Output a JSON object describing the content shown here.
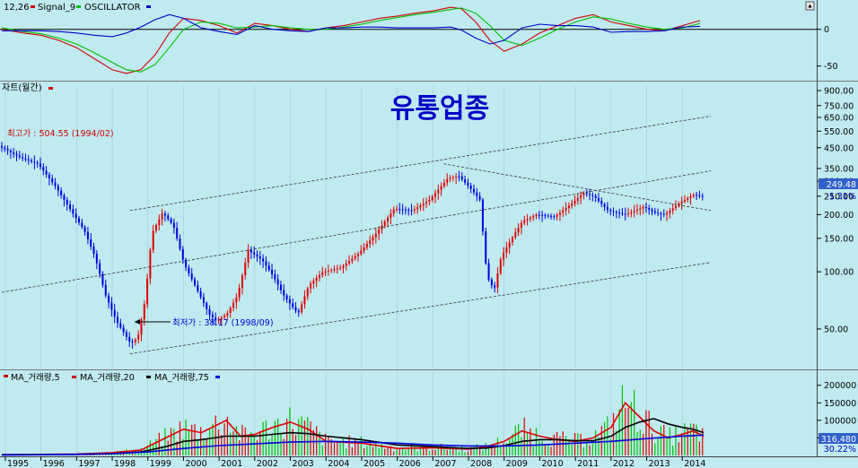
{
  "chart_data": [
    {
      "type": "line",
      "panel": "oscillator",
      "legend": [
        {
          "label": "12,26",
          "color": "#d00000"
        },
        {
          "label": "Signal_9",
          "color": "#00c000"
        },
        {
          "label": "OSCILLATOR",
          "color": "#0000cc"
        }
      ],
      "yticks": [
        "0",
        "-50"
      ],
      "ylim": [
        -65,
        35
      ],
      "series": [
        {
          "name": "12,26",
          "color": "#d00000",
          "x": [
            1994.9,
            1995.5,
            1996.0,
            1996.5,
            1997.0,
            1997.5,
            1998.0,
            1998.4,
            1998.8,
            1999.2,
            1999.6,
            2000.0,
            2000.5,
            2001.0,
            2001.5,
            2002.0,
            2002.5,
            2003.0,
            2003.5,
            2004.0,
            2004.5,
            2005.0,
            2005.5,
            2006.0,
            2006.5,
            2007.0,
            2007.5,
            2007.8,
            2008.2,
            2008.6,
            2009.0,
            2009.5,
            2010.0,
            2010.5,
            2011.0,
            2011.5,
            2012.0,
            2012.5,
            2013.0,
            2013.5,
            2014.0,
            2014.5
          ],
          "values": [
            0,
            -5,
            -8,
            -15,
            -25,
            -40,
            -55,
            -60,
            -55,
            -35,
            -5,
            15,
            12,
            5,
            -5,
            8,
            5,
            0,
            -3,
            2,
            5,
            10,
            15,
            18,
            22,
            25,
            30,
            28,
            10,
            -15,
            -30,
            -20,
            -5,
            5,
            15,
            20,
            10,
            5,
            0,
            -2,
            5,
            12
          ]
        },
        {
          "name": "Signal_9",
          "color": "#00c000",
          "x": [
            1994.9,
            1995.5,
            1996.0,
            1996.5,
            1997.0,
            1997.5,
            1998.0,
            1998.4,
            1998.8,
            1999.2,
            1999.6,
            2000.0,
            2000.5,
            2001.0,
            2001.5,
            2002.0,
            2002.5,
            2003.0,
            2003.5,
            2004.0,
            2004.5,
            2005.0,
            2005.5,
            2006.0,
            2006.5,
            2007.0,
            2007.5,
            2007.8,
            2008.2,
            2008.6,
            2009.0,
            2009.5,
            2010.0,
            2010.5,
            2011.0,
            2011.5,
            2012.0,
            2012.5,
            2013.0,
            2013.5,
            2014.0,
            2014.5
          ],
          "values": [
            2,
            -3,
            -6,
            -12,
            -20,
            -32,
            -45,
            -55,
            -58,
            -48,
            -25,
            0,
            10,
            8,
            2,
            3,
            5,
            2,
            0,
            0,
            3,
            7,
            12,
            16,
            20,
            23,
            27,
            29,
            22,
            5,
            -15,
            -22,
            -12,
            0,
            10,
            17,
            14,
            8,
            3,
            0,
            2,
            8
          ]
        },
        {
          "name": "OSCILLATOR",
          "color": "#0000cc",
          "x": [
            1994.9,
            1995.5,
            1996.0,
            1996.5,
            1997.0,
            1997.5,
            1998.0,
            1998.4,
            1998.8,
            1999.2,
            1999.6,
            2000.0,
            2000.5,
            2001.0,
            2001.5,
            2002.0,
            2002.5,
            2003.0,
            2003.5,
            2004.0,
            2004.5,
            2005.0,
            2005.5,
            2006.0,
            2006.5,
            2007.0,
            2007.5,
            2007.8,
            2008.2,
            2008.6,
            2009.0,
            2009.5,
            2010.0,
            2010.5,
            2011.0,
            2011.5,
            2012.0,
            2012.5,
            2013.0,
            2013.5,
            2014.0,
            2014.5
          ],
          "values": [
            -2,
            -2,
            -2,
            -3,
            -5,
            -8,
            -10,
            -5,
            3,
            13,
            20,
            15,
            2,
            -3,
            -7,
            5,
            0,
            -2,
            -3,
            2,
            2,
            3,
            3,
            2,
            2,
            2,
            3,
            -1,
            -12,
            -20,
            -15,
            2,
            7,
            5,
            5,
            3,
            -4,
            -3,
            -3,
            -2,
            3,
            4
          ]
        }
      ]
    },
    {
      "type": "line",
      "panel": "price",
      "header": "자트(월간)",
      "title": "유통업종",
      "yscale": "log",
      "ylim": [
        32,
        950
      ],
      "yticks": [
        50,
        100,
        150,
        200,
        250,
        300,
        350,
        450,
        550,
        650,
        750,
        900
      ],
      "ytick_labels": [
        "50.00",
        "100.00",
        "150.00",
        "200.00",
        "250.00",
        "300.00",
        "350.00",
        "450.00",
        "550.00",
        "650.00",
        "750.00",
        "900.00"
      ],
      "xlabels": [
        "1995",
        "1996",
        "1997",
        "1998",
        "1999",
        "2000",
        "2001",
        "2002",
        "2003",
        "2004",
        "2005",
        "2006",
        "2007",
        "2008",
        "2009",
        "2010",
        "2011",
        "2012",
        "2013",
        "2014"
      ],
      "annotations": {
        "high_label": "최고가 : 504.55 (1994/02)",
        "low_label": "최저가 : 38.17 (1998/09)",
        "last_value": "249.48",
        "change_pct": "-1.31%"
      },
      "colors": {
        "up": "#e00000",
        "down": "#0000e0"
      },
      "series": [
        {
          "name": "price",
          "x": [
            1994.9,
            1995.5,
            1996.0,
            1996.5,
            1997.0,
            1997.3,
            1997.6,
            1997.9,
            1998.2,
            1998.6,
            1998.8,
            1999.0,
            1999.2,
            1999.5,
            1999.8,
            2000.1,
            2000.4,
            2000.8,
            2001.0,
            2001.3,
            2001.6,
            2001.9,
            2002.3,
            2002.6,
            2002.9,
            2003.3,
            2003.6,
            2004.0,
            2004.5,
            2005.0,
            2005.5,
            2006.0,
            2006.5,
            2007.0,
            2007.5,
            2007.8,
            2008.1,
            2008.4,
            2008.6,
            2008.8,
            2009.0,
            2009.3,
            2009.6,
            2010.0,
            2010.5,
            2011.0,
            2011.3,
            2011.6,
            2012.0,
            2012.5,
            2013.0,
            2013.3,
            2013.6,
            2014.0,
            2014.4,
            2014.6
          ],
          "values": [
            460,
            400,
            370,
            280,
            200,
            165,
            120,
            75,
            55,
            42,
            45,
            70,
            160,
            205,
            175,
            110,
            85,
            60,
            55,
            60,
            75,
            130,
            115,
            95,
            75,
            60,
            85,
            100,
            105,
            125,
            160,
            215,
            210,
            240,
            310,
            320,
            280,
            240,
            95,
            80,
            120,
            150,
            185,
            200,
            195,
            230,
            260,
            250,
            210,
            200,
            220,
            205,
            200,
            230,
            255,
            249.48
          ]
        }
      ],
      "trendlines": [
        {
          "x": [
            1994.9,
            2014.8
          ],
          "values": [
            78,
            340
          ],
          "style": "dashed"
        },
        {
          "x": [
            1998.5,
            2014.8
          ],
          "values": [
            210,
            660
          ],
          "style": "dashed"
        },
        {
          "x": [
            1998.5,
            2014.8
          ],
          "values": [
            37,
            112
          ],
          "style": "dashed"
        },
        {
          "x": [
            2007.3,
            2014.8
          ],
          "values": [
            370,
            210
          ],
          "style": "dashed"
        }
      ]
    },
    {
      "type": "bar",
      "panel": "volume",
      "legend": [
        {
          "label": "MA_거래량,5",
          "color": "#e00000"
        },
        {
          "label": "MA_거래량,20",
          "color": "#e00000"
        },
        {
          "label": "MA_거래량,75",
          "color": "#0000e0"
        }
      ],
      "ylim": [
        0,
        230000
      ],
      "yticks": [
        "200000",
        "150000",
        "100000",
        "50000"
      ],
      "last_value": "316,480",
      "change_pct": "30.22%",
      "series": [
        {
          "name": "MA_거래량,5",
          "color": "#e00000",
          "x": [
            1994.9,
            1996.0,
            1997.0,
            1998.0,
            1998.8,
            1999.5,
            2000.0,
            2000.5,
            2001.2,
            2001.6,
            2002.0,
            2002.5,
            2003.0,
            2003.5,
            2004.0,
            2005.0,
            2006.0,
            2007.0,
            2008.0,
            2008.5,
            2009.0,
            2009.5,
            2010.0,
            2010.5,
            2011.0,
            2011.5,
            2012.0,
            2012.4,
            2012.8,
            2013.2,
            2013.6,
            2014.0,
            2014.3,
            2014.6
          ],
          "values": [
            2000,
            3000,
            4000,
            8000,
            15000,
            50000,
            75000,
            65000,
            100000,
            55000,
            60000,
            80000,
            95000,
            75000,
            40000,
            35000,
            20000,
            22000,
            18000,
            25000,
            40000,
            70000,
            55000,
            45000,
            40000,
            50000,
            80000,
            150000,
            110000,
            70000,
            50000,
            60000,
            70000,
            55000
          ]
        },
        {
          "name": "MA_거래량,20",
          "color": "#000000",
          "x": [
            1994.9,
            1996.0,
            1997.0,
            1998.0,
            1998.8,
            1999.5,
            2000.0,
            2000.5,
            2001.2,
            2001.6,
            2002.0,
            2002.5,
            2003.0,
            2003.5,
            2004.0,
            2005.0,
            2006.0,
            2007.0,
            2008.0,
            2008.5,
            2009.0,
            2009.5,
            2010.0,
            2010.5,
            2011.0,
            2011.5,
            2012.0,
            2012.4,
            2012.8,
            2013.2,
            2013.6,
            2014.0,
            2014.3,
            2014.6
          ],
          "values": [
            2000,
            2500,
            3000,
            5000,
            10000,
            25000,
            40000,
            45000,
            55000,
            55000,
            55000,
            60000,
            65000,
            62000,
            55000,
            45000,
            30000,
            25000,
            20000,
            21000,
            28000,
            40000,
            45000,
            45000,
            42000,
            42000,
            55000,
            80000,
            95000,
            105000,
            90000,
            80000,
            75000,
            65000
          ]
        },
        {
          "name": "MA_거래량,75",
          "color": "#0000e0",
          "x": [
            1994.9,
            1996.0,
            1997.0,
            1998.0,
            1999.0,
            2000.0,
            2001.0,
            2002.0,
            2003.0,
            2004.0,
            2005.0,
            2006.0,
            2007.0,
            2008.0,
            2009.0,
            2010.0,
            2011.0,
            2012.0,
            2013.0,
            2014.0,
            2014.6
          ],
          "values": [
            1000,
            2000,
            3000,
            5000,
            10000,
            20000,
            28000,
            33000,
            38000,
            40000,
            38000,
            35000,
            30000,
            27000,
            27000,
            30000,
            35000,
            40000,
            48000,
            55000,
            58000
          ]
        }
      ]
    }
  ]
}
